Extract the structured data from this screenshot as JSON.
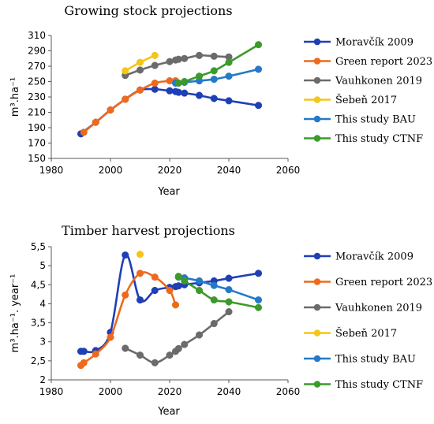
{
  "colors": {
    "moravcik": "#1f3fb5",
    "green": "#ed6a1c",
    "vauh": "#6b6b6b",
    "seben": "#f5c518",
    "bau": "#2479c9",
    "ctnf": "#3c9a2a"
  },
  "chart_data": [
    {
      "type": "line",
      "title": "Growing stock projections",
      "xlabel": "Year",
      "ylabel": "m³.ha⁻¹",
      "xlim": [
        1980,
        2060
      ],
      "ylim": [
        150,
        310
      ],
      "xticks": [
        1980,
        2000,
        2020,
        2040,
        2060
      ],
      "yticks": [
        150,
        170,
        190,
        210,
        230,
        250,
        270,
        290,
        310
      ],
      "tick_labels_x": [
        "1980",
        "2000",
        "2020",
        "2040",
        "2060"
      ],
      "tick_labels_y": [
        "150",
        "170",
        "190",
        "210",
        "230",
        "250",
        "270",
        "290",
        "310"
      ],
      "legend_position": "right",
      "series": [
        {
          "name": "Moravčík 2009",
          "color_key": "moravcik",
          "x": [
            1990,
            1995,
            2000,
            2005,
            2010,
            2015,
            2020,
            2022,
            2023,
            2025,
            2030,
            2035,
            2040,
            2050
          ],
          "y": [
            182,
            197,
            213,
            227,
            239,
            240,
            238,
            237,
            236,
            235,
            232,
            228,
            225,
            219
          ]
        },
        {
          "name": "Green report 2023",
          "color_key": "green",
          "x": [
            1991,
            1995,
            2000,
            2005,
            2010,
            2015,
            2020,
            2022
          ],
          "y": [
            184,
            197,
            213,
            227,
            239,
            248,
            251,
            251
          ]
        },
        {
          "name": "Vauhkonen 2019",
          "color_key": "vauh",
          "x": [
            2005,
            2010,
            2015,
            2020,
            2022,
            2023,
            2025,
            2030,
            2035,
            2040
          ],
          "y": [
            258,
            265,
            271,
            276,
            278,
            279,
            280,
            284,
            283,
            282
          ]
        },
        {
          "name": "Šebeň 2017",
          "color_key": "seben",
          "x": [
            2005,
            2010,
            2015
          ],
          "y": [
            264,
            275,
            284
          ]
        },
        {
          "name": "This study BAU",
          "color_key": "bau",
          "x": [
            2022,
            2025,
            2030,
            2035,
            2040,
            2050
          ],
          "y": [
            248,
            249,
            251,
            253,
            257,
            266
          ]
        },
        {
          "name": "This study CTNF",
          "color_key": "ctnf",
          "x": [
            2023,
            2025,
            2030,
            2035,
            2040,
            2050
          ],
          "y": [
            248,
            250,
            257,
            264,
            275,
            298
          ]
        }
      ]
    },
    {
      "type": "line",
      "title": "Timber harvest projections",
      "xlabel": "Year",
      "ylabel": "m³.ha⁻¹. year⁻¹",
      "xlim": [
        1980,
        2060
      ],
      "ylim": [
        2,
        5.5
      ],
      "xticks": [
        1980,
        2000,
        2020,
        2040,
        2060
      ],
      "yticks": [
        2,
        2.5,
        3,
        3.5,
        4,
        4.5,
        5,
        5.5
      ],
      "tick_labels_x": [
        "1980",
        "2000",
        "2020",
        "2040",
        "2060"
      ],
      "tick_labels_y": [
        "2",
        "2,5",
        "3",
        "3,5",
        "4",
        "4,5",
        "5",
        "5,5"
      ],
      "legend_position": "right",
      "series": [
        {
          "name": "Moravčík 2009",
          "color_key": "moravcik",
          "x": [
            1990,
            1991,
            1995,
            2000,
            2005,
            2010,
            2015,
            2020,
            2022,
            2023,
            2025,
            2030,
            2035,
            2040,
            2050
          ],
          "y": [
            2.75,
            2.75,
            2.77,
            3.25,
            5.28,
            4.1,
            4.35,
            4.43,
            4.45,
            4.47,
            4.5,
            4.55,
            4.6,
            4.67,
            4.8
          ]
        },
        {
          "name": "Green report 2023",
          "color_key": "green",
          "x": [
            1990,
            1991,
            1995,
            2000,
            2005,
            2010,
            2015,
            2020,
            2022
          ],
          "y": [
            2.38,
            2.45,
            2.68,
            3.12,
            4.23,
            4.8,
            4.7,
            4.35,
            3.97
          ]
        },
        {
          "name": "Vauhkonen 2019",
          "color_key": "vauh",
          "x": [
            2005,
            2010,
            2015,
            2020,
            2022,
            2023,
            2025,
            2030,
            2035,
            2040
          ],
          "y": [
            2.83,
            2.65,
            2.45,
            2.65,
            2.75,
            2.82,
            2.93,
            3.18,
            3.48,
            3.79
          ]
        },
        {
          "name": "Šebeň 2017",
          "color_key": "seben",
          "x": [
            2010
          ],
          "y": [
            5.3
          ]
        },
        {
          "name": "This study BAU",
          "color_key": "bau",
          "x": [
            2023,
            2025,
            2030,
            2035,
            2040,
            2050
          ],
          "y": [
            4.7,
            4.68,
            4.6,
            4.48,
            4.37,
            4.1
          ]
        },
        {
          "name": "This study CTNF",
          "color_key": "ctnf",
          "x": [
            2023,
            2025,
            2030,
            2035,
            2040,
            2050
          ],
          "y": [
            4.72,
            4.6,
            4.35,
            4.1,
            4.05,
            3.9
          ]
        }
      ]
    }
  ]
}
